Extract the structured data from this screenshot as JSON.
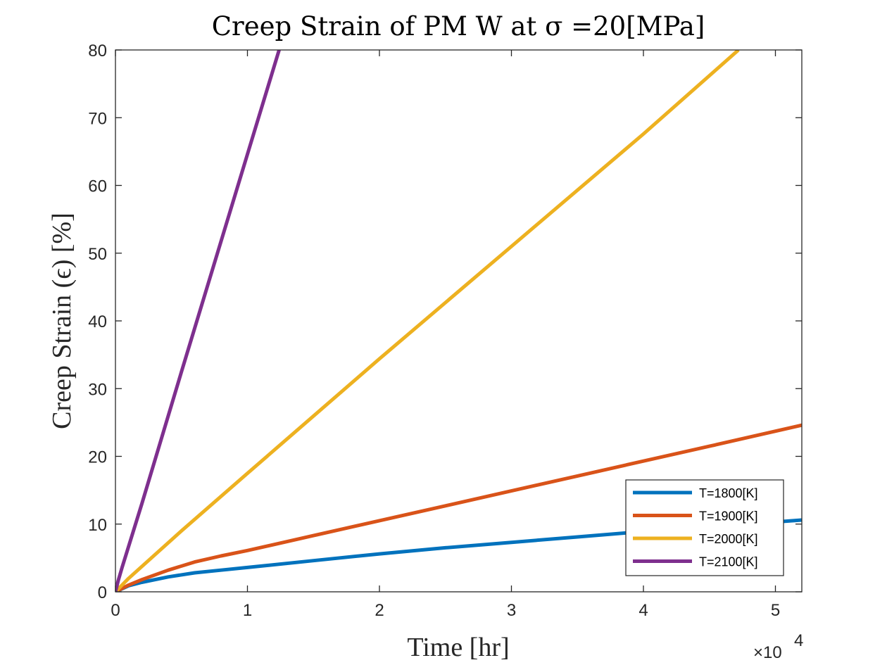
{
  "chart_data": {
    "type": "line",
    "title": "Creep Strain of PM W at σ =20[MPa]",
    "xlabel": "Time [hr]",
    "ylabel": "Creep Strain (ϵ) [%]",
    "x_multiplier_label": "×10",
    "x_multiplier_exponent": "4",
    "x_scale": 10000,
    "xlim": [
      0,
      52000
    ],
    "ylim": [
      0,
      80
    ],
    "x_ticks": [
      0,
      10000,
      20000,
      30000,
      40000,
      50000
    ],
    "x_tick_labels": [
      "0",
      "1",
      "2",
      "3",
      "4",
      "5"
    ],
    "y_ticks": [
      0,
      10,
      20,
      30,
      40,
      50,
      60,
      70,
      80
    ],
    "y_tick_labels": [
      "0",
      "10",
      "20",
      "30",
      "40",
      "50",
      "60",
      "70",
      "80"
    ],
    "grid": false,
    "legend_position": "bottom-right",
    "series": [
      {
        "name": "T=1800[K]",
        "color": "#0072BD",
        "x": [
          0,
          1000,
          2000,
          4000,
          6000,
          8000,
          10000,
          15000,
          20000,
          25000,
          30000,
          35000,
          40000,
          45000,
          52000
        ],
        "y": [
          0,
          0.9,
          1.4,
          2.2,
          2.8,
          3.2,
          3.6,
          4.6,
          5.6,
          6.5,
          7.3,
          8.1,
          8.9,
          9.6,
          10.6
        ]
      },
      {
        "name": "T=1900[K]",
        "color": "#D95319",
        "x": [
          0,
          1000,
          2000,
          4000,
          6000,
          8000,
          10000,
          15000,
          20000,
          25000,
          30000,
          35000,
          40000,
          45000,
          52000
        ],
        "y": [
          0,
          1.0,
          1.8,
          3.2,
          4.4,
          5.3,
          6.1,
          8.3,
          10.5,
          12.7,
          14.9,
          17.1,
          19.3,
          21.5,
          24.6
        ]
      },
      {
        "name": "T=2000[K]",
        "color": "#EDB120",
        "x": [
          0,
          500,
          1000,
          5000,
          10000,
          20000,
          30000,
          40000,
          47200
        ],
        "y": [
          0,
          1.0,
          2.0,
          9.0,
          17.5,
          34.4,
          51.0,
          67.6,
          80
        ]
      },
      {
        "name": "T=2100[K]",
        "color": "#7E2F8E",
        "x": [
          0,
          200,
          500,
          2000,
          5000,
          10000,
          12400
        ],
        "y": [
          0,
          1.6,
          3.6,
          13.0,
          32.5,
          64.6,
          80
        ]
      }
    ]
  }
}
